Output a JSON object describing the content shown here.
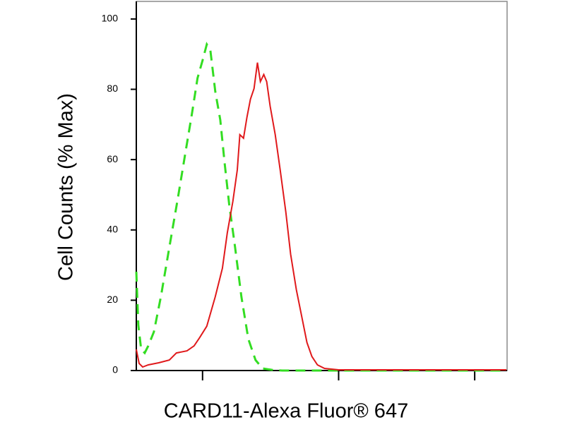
{
  "chart_data": {
    "type": "line",
    "x_label": "CARD11-Alexa Fluor® 647",
    "y_label": "Cell Counts (% Max)",
    "x_log": true,
    "xlim": [
      32.6,
      17300
    ],
    "xticks": [
      100,
      1000,
      10000
    ],
    "ylim": [
      0,
      105
    ],
    "yticks": [
      0,
      20,
      40,
      60,
      80,
      100
    ],
    "series": [
      {
        "color": "#33dd22",
        "dash": true,
        "x": [
          32.6,
          33.7,
          35.4,
          37.6,
          39.9,
          43.9,
          49.4,
          57.0,
          65.9,
          74.2,
          83.6,
          91.9,
          100,
          107.4,
          114,
          124,
          135,
          145,
          157,
          173,
          193,
          217,
          245,
          276,
          322,
          385,
          621,
          17100
        ],
        "values": [
          28.1,
          13.0,
          6.0,
          5.0,
          7.0,
          11.0,
          21.0,
          35.1,
          49.1,
          61.1,
          73.1,
          83.2,
          88.2,
          92.8,
          91.2,
          79.4,
          71.3,
          59.3,
          47.3,
          35.3,
          21.0,
          9.0,
          3.0,
          0.6,
          0.2,
          0,
          0,
          0
        ]
      },
      {
        "color": "#e0191b",
        "dash": false,
        "x": [
          32.6,
          34.2,
          36.3,
          39.9,
          47.7,
          57.0,
          64.3,
          76.9,
          86.7,
          95.3,
          107.4,
          124,
          140,
          152,
          167,
          180,
          188,
          200,
          212,
          225,
          239,
          253,
          266,
          282,
          296,
          314,
          342,
          372,
          409,
          444,
          489,
          538,
          585,
          636,
          699,
          788,
          1000,
          17100
        ],
        "values": [
          6.0,
          2.0,
          1.0,
          1.6,
          2.2,
          3.0,
          5.0,
          5.6,
          7.0,
          9.4,
          12.6,
          21.0,
          29.1,
          39.1,
          48.1,
          57.1,
          67.1,
          66.1,
          72.1,
          77.2,
          80.2,
          87.6,
          82.2,
          84.2,
          82.2,
          75.2,
          67.1,
          57.1,
          45.1,
          33.1,
          23.0,
          15.0,
          8.0,
          4.0,
          1.6,
          0.6,
          0.2,
          0.2
        ]
      }
    ]
  }
}
